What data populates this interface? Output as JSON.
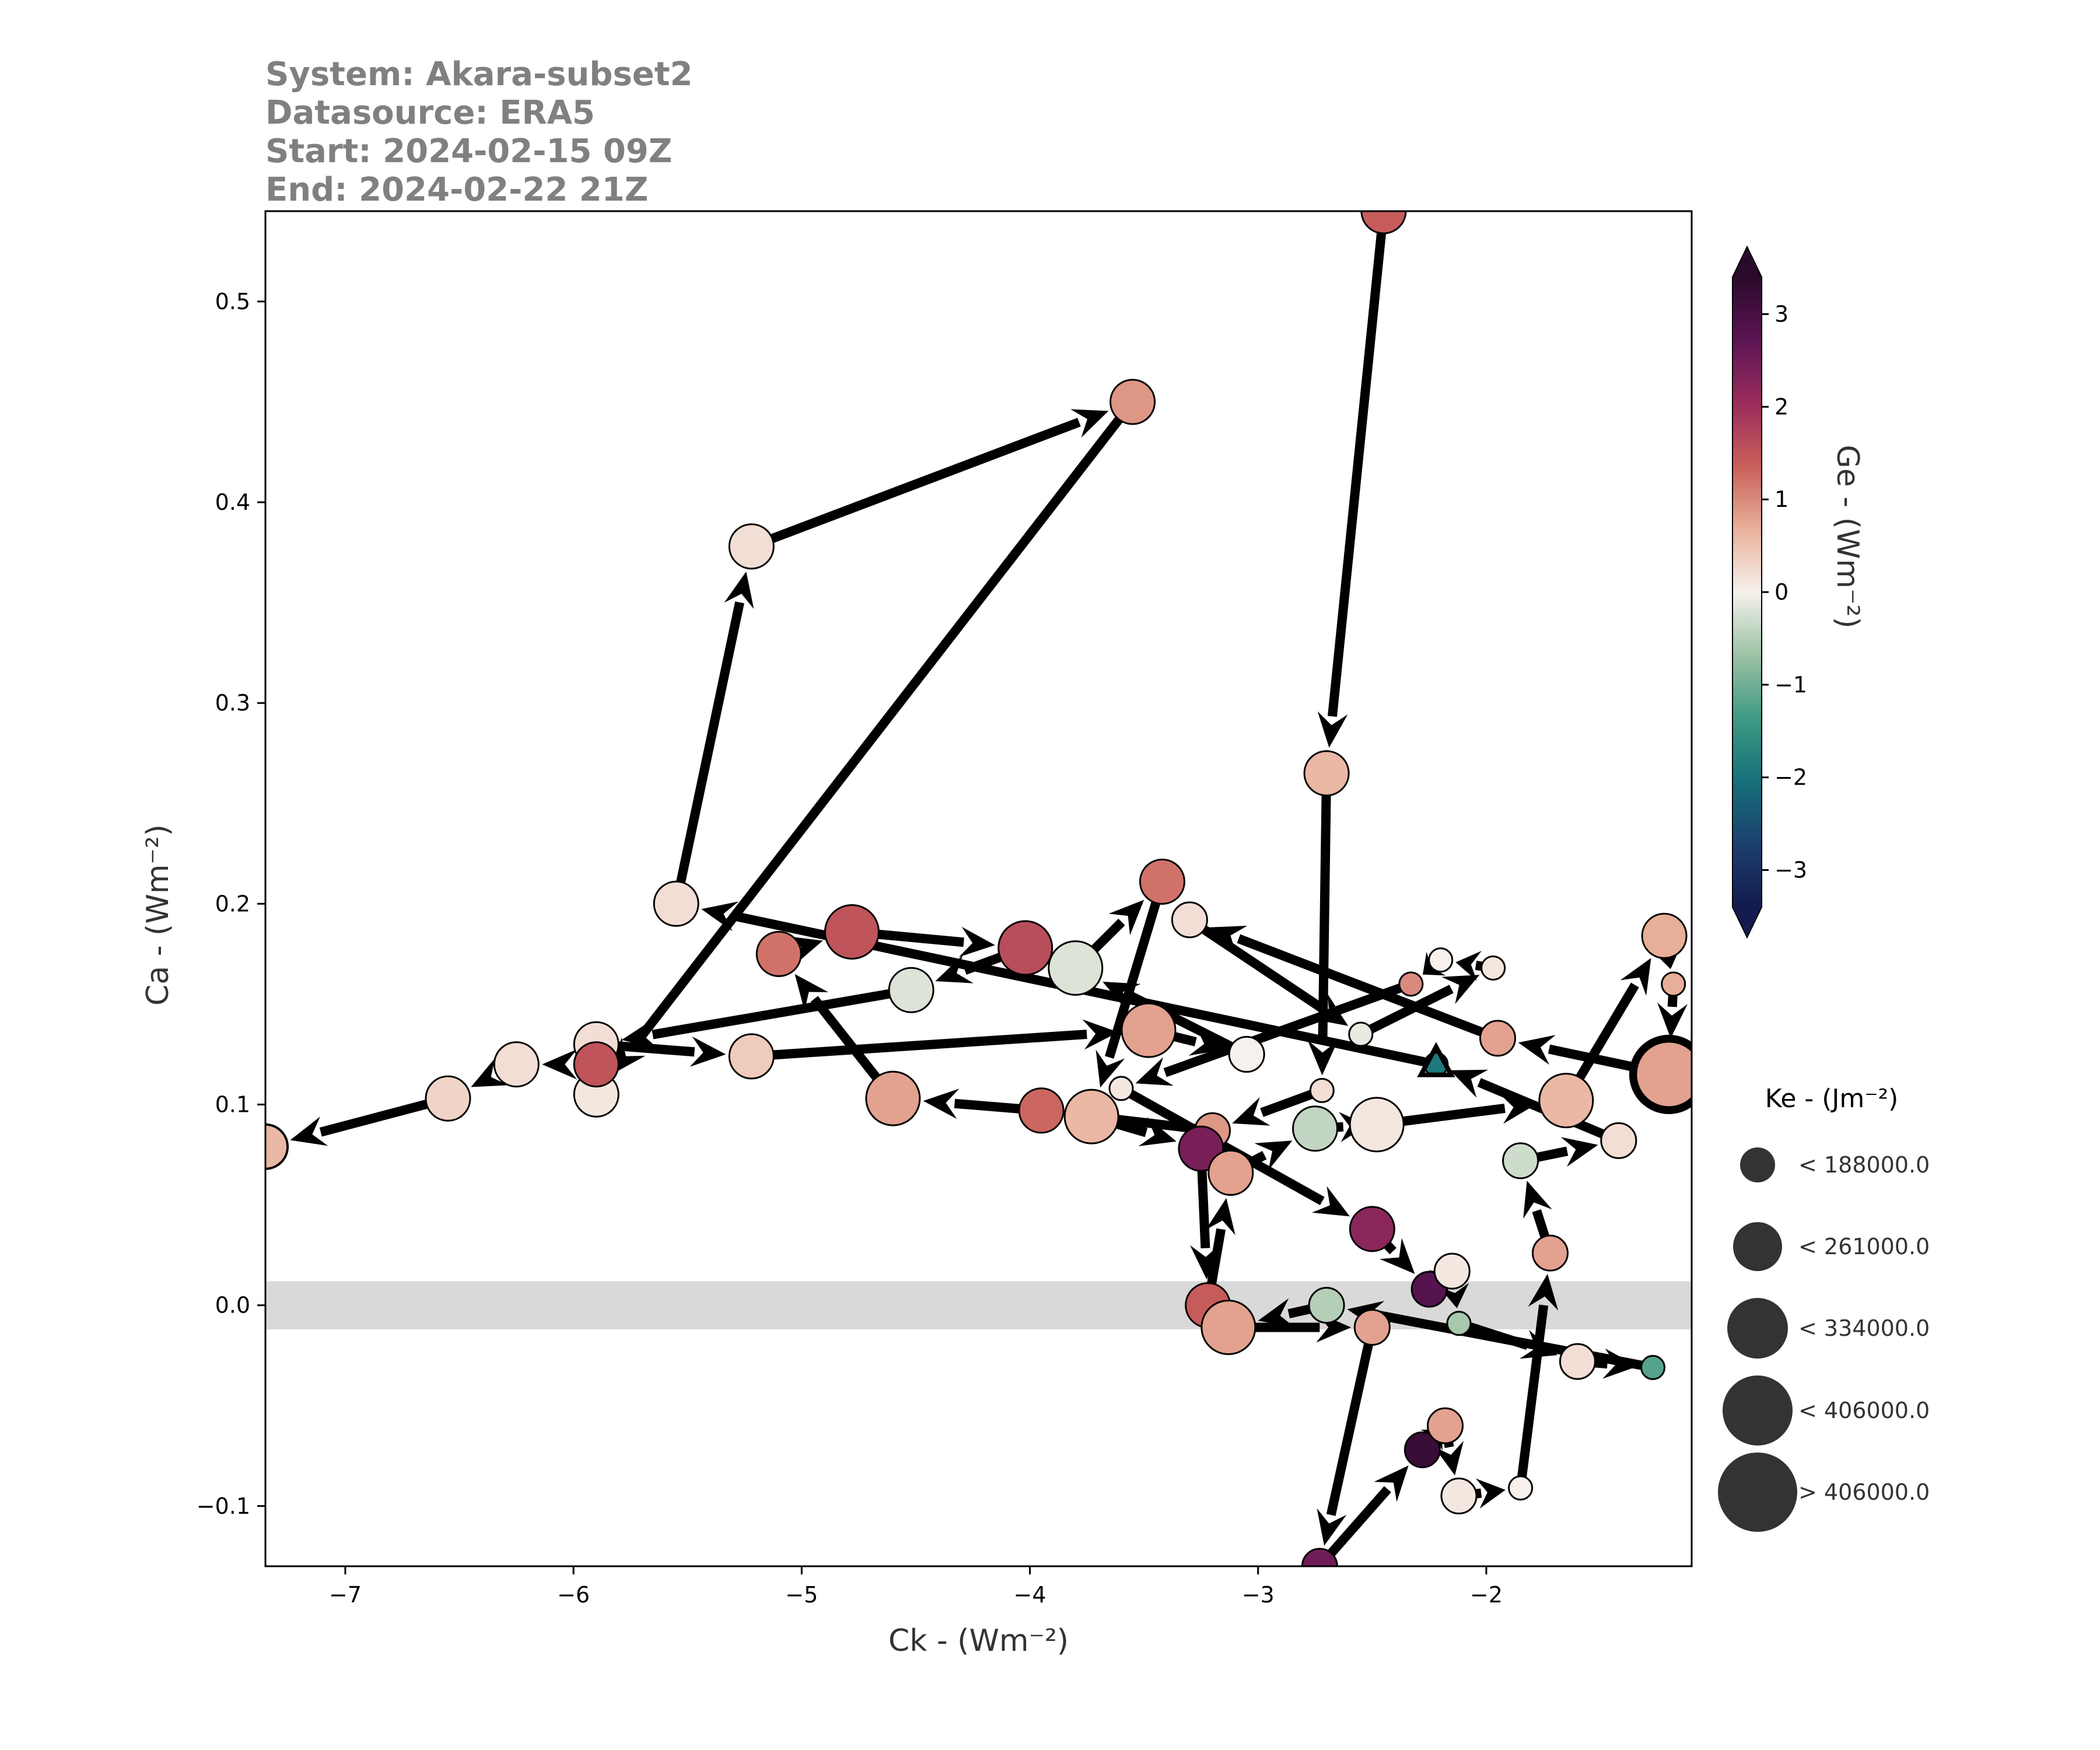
{
  "header": {
    "system": "System: Akara-subset2",
    "datasource": "Datasource: ERA5",
    "start": "Start: 2024-02-15 09Z",
    "end": "End: 2024-02-22 21Z"
  },
  "chart_data": {
    "type": "scatter",
    "title": "",
    "xlabel": "Ck - (Wm⁻²)",
    "ylabel": "Ca - (Wm⁻²)",
    "xlim": [
      -7.35,
      -1.1
    ],
    "ylim": [
      -0.13,
      0.545
    ],
    "xticks": [
      -7,
      -6,
      -5,
      -4,
      -3,
      -2
    ],
    "xtick_labels": [
      "−7",
      "−6",
      "−5",
      "−4",
      "−3",
      "−2"
    ],
    "yticks": [
      -0.1,
      0.0,
      0.1,
      0.2,
      0.3,
      0.4,
      0.5
    ],
    "ytick_labels": [
      "−0.1",
      "0.0",
      "0.1",
      "0.2",
      "0.3",
      "0.4",
      "0.5"
    ],
    "shaded_band": [
      -0.012,
      0.012
    ],
    "shaded_band_color": "#d9d9d9",
    "arrow_color": "#000000",
    "trajectory": [
      {
        "x": -2.45,
        "y": 0.545,
        "ge": 1.4,
        "ke": 3
      },
      {
        "x": -2.7,
        "y": 0.265,
        "ge": 0.6,
        "ke": 3
      },
      {
        "x": -2.72,
        "y": 0.107,
        "ge": 0.2,
        "ke": 1
      },
      {
        "x": -3.2,
        "y": 0.087,
        "ge": 0.9,
        "ke": 2
      },
      {
        "x": -3.95,
        "y": 0.097,
        "ge": 1.3,
        "ke": 3
      },
      {
        "x": -4.6,
        "y": 0.103,
        "ge": 0.8,
        "ke": 4
      },
      {
        "x": -5.1,
        "y": 0.175,
        "ge": 1.2,
        "ke": 3
      },
      {
        "x": -4.78,
        "y": 0.186,
        "ge": 1.5,
        "ke": 4
      },
      {
        "x": -4.02,
        "y": 0.178,
        "ge": 1.6,
        "ke": 4
      },
      {
        "x": -4.52,
        "y": 0.157,
        "ge": -0.2,
        "ke": 3
      },
      {
        "x": -5.9,
        "y": 0.13,
        "ge": 0.2,
        "ke": 3
      },
      {
        "x": -5.22,
        "y": 0.124,
        "ge": 0.4,
        "ke": 3
      },
      {
        "x": -3.48,
        "y": 0.137,
        "ge": 0.8,
        "ke": 4
      },
      {
        "x": -3.05,
        "y": 0.125,
        "ge": 0.0,
        "ke": 2
      },
      {
        "x": -3.8,
        "y": 0.168,
        "ge": -0.2,
        "ke": 4
      },
      {
        "x": -3.42,
        "y": 0.211,
        "ge": 1.2,
        "ke": 3
      },
      {
        "x": -3.73,
        "y": 0.094,
        "ge": 0.6,
        "ke": 4
      },
      {
        "x": -3.25,
        "y": 0.078,
        "ge": 2.4,
        "ke": 3
      },
      {
        "x": -3.22,
        "y": 0.0,
        "ge": 1.4,
        "ke": 3
      },
      {
        "x": -3.12,
        "y": 0.066,
        "ge": 0.8,
        "ke": 3
      },
      {
        "x": -2.75,
        "y": 0.088,
        "ge": -0.4,
        "ke": 3
      },
      {
        "x": -2.48,
        "y": 0.09,
        "ge": 0.1,
        "ke": 4
      },
      {
        "x": -1.65,
        "y": 0.102,
        "ge": 0.6,
        "ke": 4
      },
      {
        "x": -1.22,
        "y": 0.184,
        "ge": 0.7,
        "ke": 3
      },
      {
        "x": -1.18,
        "y": 0.16,
        "ge": 0.7,
        "ke": 1
      },
      {
        "x": -1.2,
        "y": 0.115,
        "ge": 0.8,
        "ke": 5
      },
      {
        "x": -1.95,
        "y": 0.133,
        "ge": 0.8,
        "ke": 2
      },
      {
        "x": -3.3,
        "y": 0.192,
        "ge": 0.2,
        "ke": 2
      },
      {
        "x": -2.55,
        "y": 0.135,
        "ge": -0.1,
        "ke": 1
      },
      {
        "x": -1.97,
        "y": 0.168,
        "ge": 0.1,
        "ke": 1
      },
      {
        "x": -2.2,
        "y": 0.172,
        "ge": 0.0,
        "ke": 1
      },
      {
        "x": -2.33,
        "y": 0.16,
        "ge": 1.0,
        "ke": 1
      },
      {
        "x": -3.6,
        "y": 0.108,
        "ge": 0.1,
        "ke": 1
      },
      {
        "x": -2.5,
        "y": 0.038,
        "ge": 2.2,
        "ke": 3
      },
      {
        "x": -2.25,
        "y": 0.008,
        "ge": 2.8,
        "ke": 2
      },
      {
        "x": -2.15,
        "y": 0.017,
        "ge": 0.1,
        "ke": 2
      },
      {
        "x": -2.12,
        "y": -0.009,
        "ge": -0.6,
        "ke": 1
      },
      {
        "x": -1.6,
        "y": -0.028,
        "ge": 0.2,
        "ke": 2
      },
      {
        "x": -1.27,
        "y": -0.031,
        "ge": -1.2,
        "ke": 1
      },
      {
        "x": -2.7,
        "y": 0.0,
        "ge": -0.5,
        "ke": 2
      },
      {
        "x": -3.13,
        "y": -0.011,
        "ge": 0.8,
        "ke": 4
      },
      {
        "x": -2.5,
        "y": -0.011,
        "ge": 0.8,
        "ke": 2
      },
      {
        "x": -2.73,
        "y": -0.13,
        "ge": 2.5,
        "ke": 2
      },
      {
        "x": -2.28,
        "y": -0.072,
        "ge": 3.2,
        "ke": 2
      },
      {
        "x": -2.18,
        "y": -0.06,
        "ge": 0.8,
        "ke": 2
      },
      {
        "x": -2.12,
        "y": -0.095,
        "ge": 0.1,
        "ke": 2
      },
      {
        "x": -1.85,
        "y": -0.091,
        "ge": 0.0,
        "ke": 1
      },
      {
        "x": -1.72,
        "y": 0.026,
        "ge": 0.8,
        "ke": 2
      },
      {
        "x": -1.85,
        "y": 0.072,
        "ge": -0.3,
        "ke": 2
      },
      {
        "x": -1.42,
        "y": 0.082,
        "ge": 0.2,
        "ke": 2
      },
      {
        "x": -2.22,
        "y": 0.12,
        "ge": -1.9,
        "ke": 1
      },
      {
        "x": -5.55,
        "y": 0.2,
        "ge": 0.2,
        "ke": 3
      },
      {
        "x": -5.22,
        "y": 0.378,
        "ge": 0.2,
        "ke": 3
      },
      {
        "x": -3.55,
        "y": 0.45,
        "ge": 0.9,
        "ke": 3
      },
      {
        "x": -5.9,
        "y": 0.105,
        "ge": 0.1,
        "ke": 3
      },
      {
        "x": -5.9,
        "y": 0.12,
        "ge": 1.5,
        "ke": 3
      },
      {
        "x": -6.25,
        "y": 0.12,
        "ge": 0.2,
        "ke": 3
      },
      {
        "x": -6.55,
        "y": 0.103,
        "ge": 0.3,
        "ke": 3
      },
      {
        "x": -7.35,
        "y": 0.079,
        "ge": 0.6,
        "ke": 3
      }
    ],
    "colorbar": {
      "label": "Ge - (Wm⁻²)",
      "ticks": [
        -3,
        -2,
        -1,
        0,
        1,
        2,
        3
      ],
      "tick_labels": [
        "−3",
        "−2",
        "−1",
        "0",
        "1",
        "2",
        "3"
      ],
      "range": [
        -3.4,
        3.4
      ],
      "extend": "both",
      "colors": [
        "#131a4d",
        "#1c3f6e",
        "#16707a",
        "#3f9a84",
        "#9cc2a4",
        "#f6f1ec",
        "#e8b09a",
        "#c95f5a",
        "#9a2c5c",
        "#5b1454",
        "#2a0a2a"
      ]
    },
    "size_legend": {
      "title": "Ke - (Jm⁻²)",
      "marker_color": "#333333",
      "entries": [
        "< 188000.0",
        "< 261000.0",
        "< 334000.0",
        "< 406000.0",
        "> 406000.0"
      ]
    }
  }
}
